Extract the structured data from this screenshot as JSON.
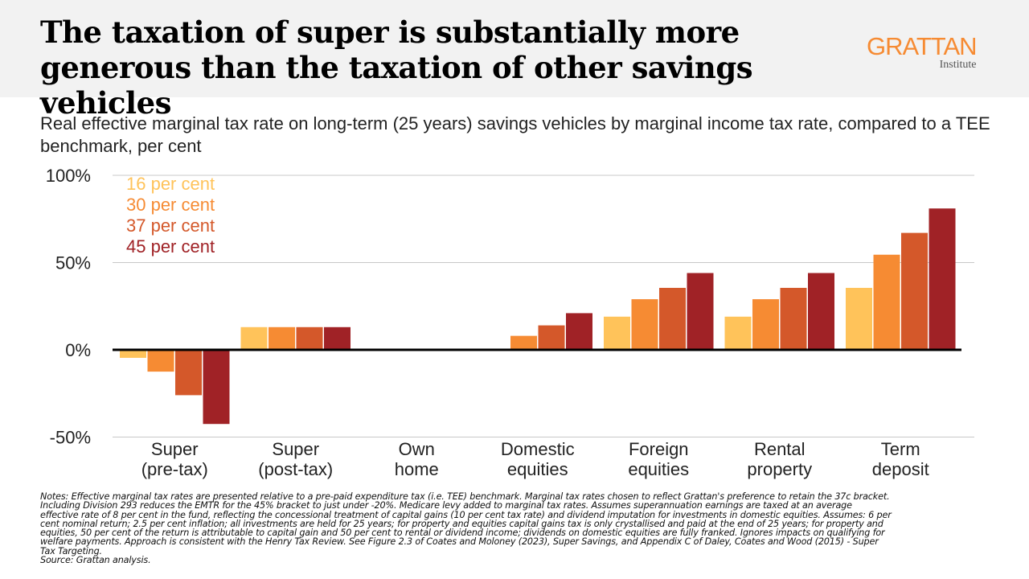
{
  "header": {
    "title": "The taxation of super is substantially more generous than the taxation of other savings vehicles",
    "logo_main": "GRATTAN",
    "logo_sub": "Institute"
  },
  "subtitle": "Real effective marginal tax rate on long-term (25 years) savings vehicles by marginal income tax rate, compared to a TEE benchmark, per cent",
  "chart_data": {
    "type": "bar",
    "categories": [
      "Super\n(pre-tax)",
      "Super\n(post-tax)",
      "Own\nhome",
      "Domestic\nequities",
      "Foreign\nequities",
      "Rental\nproperty",
      "Term\ndeposit"
    ],
    "series": [
      {
        "name": "16 per cent",
        "color": "#ffc35a",
        "values": [
          -4.6,
          13,
          0,
          0,
          19,
          19,
          35.5
        ]
      },
      {
        "name": "30 per cent",
        "color": "#f68b33",
        "values": [
          -12.5,
          13,
          0,
          8,
          29,
          29,
          54.5
        ]
      },
      {
        "name": "37 per cent",
        "color": "#d4582a",
        "values": [
          -26,
          13,
          0,
          14,
          35.5,
          35.5,
          67
        ]
      },
      {
        "name": "45 per cent",
        "color": "#a02226",
        "values": [
          -42.5,
          13,
          0,
          21,
          44,
          44,
          81
        ]
      }
    ],
    "yticks": [
      "100%",
      "50%",
      "0%",
      "-50%"
    ],
    "ytick_values": [
      100,
      50,
      0,
      -50
    ],
    "ylim": [
      -50,
      100
    ],
    "grid": true,
    "legend_placement": "top-left"
  },
  "notes": "Notes: Effective marginal tax rates are presented relative to a pre-paid expenditure tax (i.e. TEE) benchmark. Marginal tax rates chosen to reflect Grattan's preference to retain the 37c bracket. Including Division 293 reduces the EMTR for the 45% bracket to just under -20%. Medicare levy added to marginal tax rates. Assumes superannuation earnings are taxed at an average effective rate of 8 per cent in the fund, reflecting the concessional treatment of capital gains (10 per cent tax rate) and dividend imputation for investments in domestic equities. Assumes: 6 per cent nominal return; 2.5 per cent inflation; all investments are held for 25 years; for property and equities capital gains tax is only crystallised and paid at the end of 25 years; for property and equities, 50 per cent of the return is attributable to capital gain and 50 per cent to rental or dividend income; dividends on domestic equities are fully franked. Ignores impacts on qualifying for welfare payments. Approach is consistent with the Henry Tax Review. See Figure 2.3 of Coates and Moloney (2023), Super Savings, and Appendix C of Daley, Coates and Wood (2015) - Super Tax Targeting.",
  "source": "Source: Grattan analysis."
}
